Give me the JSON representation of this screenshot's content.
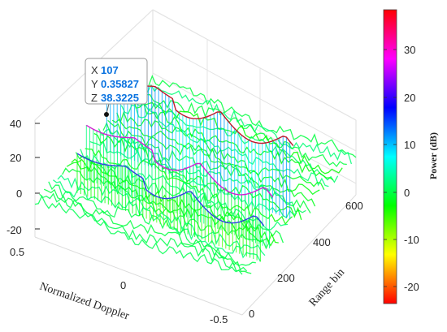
{
  "chart_data": {
    "type": "surface3d",
    "xlabel": "Normalized Doppler",
    "ylabel": "Range bin",
    "zlabel": "",
    "xlim": [
      -0.5,
      0.5
    ],
    "ylim": [
      0,
      600
    ],
    "zlim": [
      -25,
      40
    ],
    "x_ticks": [
      "0.5",
      "0",
      "-0.5"
    ],
    "y_ticks": [
      "0",
      "200",
      "400",
      "600"
    ],
    "z_ticks": [
      "40",
      "20",
      "0",
      "-20"
    ],
    "colorbar": {
      "label": "Power (dB)",
      "range": [
        -24,
        38
      ],
      "ticks": [
        "30",
        "20",
        "10",
        "0",
        "-10",
        "-20"
      ],
      "colormap": [
        "#ff0000",
        "#ffff00",
        "#00ff00",
        "#00ffff",
        "#0000ff",
        "#ff00ff",
        "#ff0000"
      ]
    },
    "datatip": {
      "x_key": "X",
      "x_value": "107",
      "y_key": "Y",
      "y_value": "0.35827",
      "z_key": "Z",
      "z_value": "38.3225"
    },
    "grid": true,
    "legend": "none"
  }
}
